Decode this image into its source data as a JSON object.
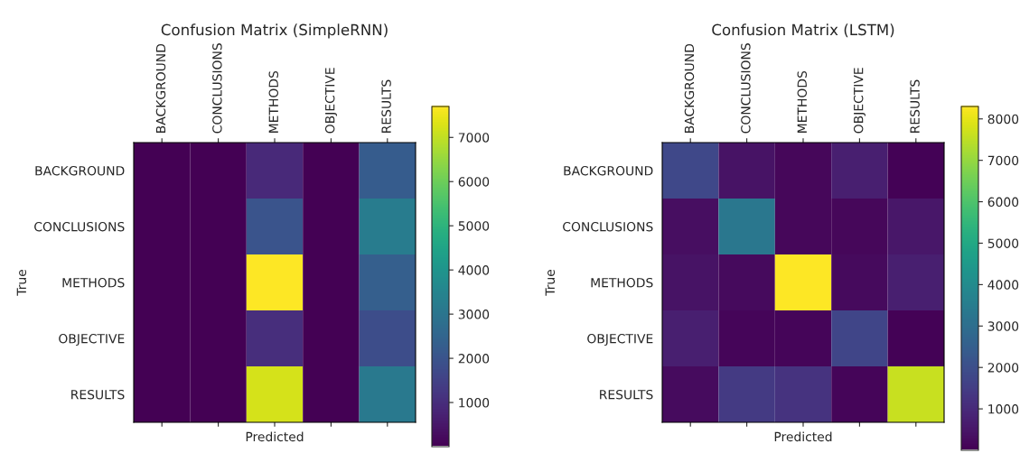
{
  "chart_data": [
    {
      "type": "heatmap",
      "title": "Confusion Matrix (SimpleRNN)",
      "xlabel": "Predicted",
      "ylabel": "True",
      "categories": [
        "BACKGROUND",
        "CONCLUSIONS",
        "METHODS",
        "OBJECTIVE",
        "RESULTS"
      ],
      "y_categories": [
        "BACKGROUND",
        "CONCLUSIONS",
        "METHODS",
        "OBJECTIVE",
        "RESULTS"
      ],
      "cells": [
        [
          0,
          0,
          900,
          0,
          2200
        ],
        [
          0,
          0,
          2000,
          0,
          3200
        ],
        [
          0,
          0,
          7700,
          0,
          2300
        ],
        [
          0,
          0,
          1000,
          0,
          1800
        ],
        [
          0,
          0,
          7200,
          0,
          3100
        ]
      ],
      "clim": [
        0,
        7700
      ],
      "cticks": [
        1000,
        2000,
        3000,
        4000,
        5000,
        6000,
        7000
      ]
    },
    {
      "type": "heatmap",
      "title": "Confusion Matrix (LSTM)",
      "xlabel": "Predicted",
      "ylabel": "True",
      "categories": [
        "BACKGROUND",
        "CONCLUSIONS",
        "METHODS",
        "OBJECTIVE",
        "RESULTS"
      ],
      "y_categories": [
        "BACKGROUND",
        "CONCLUSIONS",
        "METHODS",
        "OBJECTIVE",
        "RESULTS"
      ],
      "cells": [
        [
          1800,
          400,
          150,
          700,
          50
        ],
        [
          300,
          3300,
          150,
          150,
          500
        ],
        [
          400,
          200,
          8300,
          200,
          700
        ],
        [
          700,
          100,
          100,
          1700,
          50
        ],
        [
          250,
          1400,
          1200,
          100,
          7600
        ]
      ],
      "clim": [
        0,
        8300
      ],
      "cticks": [
        1000,
        2000,
        3000,
        4000,
        5000,
        6000,
        7000,
        8000
      ]
    }
  ]
}
